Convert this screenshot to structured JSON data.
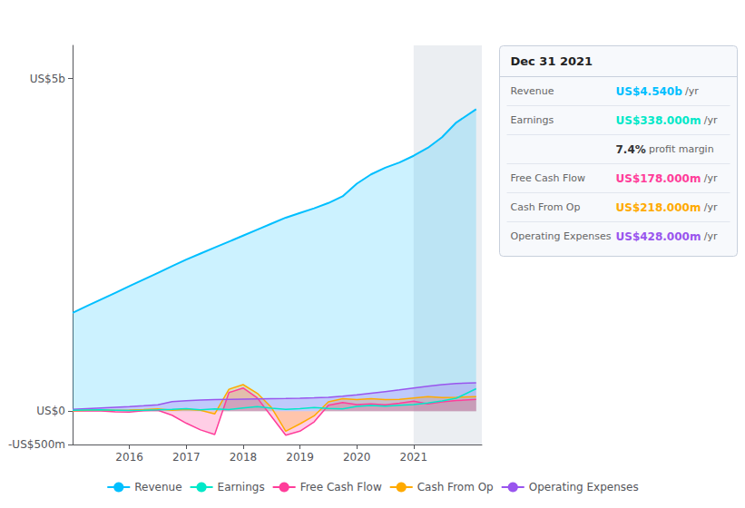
{
  "chart_data": {
    "type": "line",
    "x": [
      2015.0,
      2015.25,
      2015.5,
      2015.75,
      2016.0,
      2016.25,
      2016.5,
      2016.75,
      2017.0,
      2017.25,
      2017.5,
      2017.75,
      2018.0,
      2018.25,
      2018.5,
      2018.75,
      2019.0,
      2019.25,
      2019.5,
      2019.75,
      2020.0,
      2020.25,
      2020.5,
      2020.75,
      2021.0,
      2021.25,
      2021.5,
      2021.75,
      2022.1
    ],
    "series": [
      {
        "name": "Revenue",
        "type": "area",
        "color": "#00bfff",
        "values": [
          1480,
          1580,
          1680,
          1780,
          1880,
          1980,
          2080,
          2180,
          2280,
          2370,
          2460,
          2550,
          2640,
          2730,
          2820,
          2910,
          2980,
          3050,
          3130,
          3230,
          3420,
          3560,
          3660,
          3740,
          3840,
          3960,
          4120,
          4340,
          4540
        ]
      },
      {
        "name": "Earnings",
        "type": "line",
        "color": "#00e8c8",
        "values": [
          15,
          18,
          20,
          16,
          12,
          14,
          20,
          28,
          40,
          22,
          35,
          25,
          50,
          70,
          45,
          28,
          38,
          55,
          42,
          35,
          72,
          85,
          75,
          90,
          100,
          125,
          155,
          195,
          338
        ]
      },
      {
        "name": "Free Cash Flow",
        "type": "area",
        "color": "#ff3d9a",
        "values": [
          5,
          8,
          4,
          -8,
          -12,
          8,
          15,
          -60,
          -180,
          -280,
          -350,
          280,
          350,
          200,
          -80,
          -360,
          -300,
          -160,
          90,
          130,
          100,
          110,
          95,
          120,
          150,
          110,
          140,
          160,
          178
        ]
      },
      {
        "name": "Cash From Op",
        "type": "area",
        "color": "#ffaa00",
        "values": [
          8,
          15,
          22,
          15,
          18,
          25,
          35,
          15,
          30,
          15,
          -40,
          330,
          400,
          270,
          55,
          -300,
          -190,
          -70,
          140,
          190,
          175,
          190,
          175,
          180,
          200,
          220,
          205,
          210,
          218
        ]
      },
      {
        "name": "Operating Expenses",
        "type": "area",
        "color": "#9955ee",
        "values": [
          30,
          40,
          50,
          60,
          70,
          82,
          96,
          145,
          158,
          168,
          174,
          178,
          182,
          186,
          190,
          193,
          197,
          202,
          210,
          225,
          245,
          270,
          295,
          320,
          350,
          375,
          400,
          418,
          428
        ]
      }
    ],
    "xlim": [
      2015.0,
      2022.2
    ],
    "xticks": [
      2016,
      2017,
      2018,
      2019,
      2020,
      2021
    ],
    "ylim": [
      -500,
      5500
    ],
    "yticks": [
      {
        "value": 5000,
        "label": "US$5b"
      },
      {
        "value": 0,
        "label": "US$0"
      },
      {
        "value": -500,
        "label": "-US$500m"
      }
    ],
    "highlight_x": [
      2021.0,
      2022.2
    ],
    "grid": false,
    "legend": "bottom",
    "info_box": {
      "title": "Dec 31 2021",
      "rows": [
        {
          "label": "Revenue",
          "value": "US$4.540b",
          "unit": "/yr",
          "color": "#00bfff"
        },
        {
          "label": "Earnings",
          "value": "US$338.000m",
          "unit": "/yr",
          "color": "#00e8c8"
        },
        {
          "value": "7.4%",
          "unit": "profit margin",
          "color": "#333333"
        },
        {
          "label": "Free Cash Flow",
          "value": "US$178.000m",
          "unit": "/yr",
          "color": "#ff3d9a"
        },
        {
          "label": "Cash From Op",
          "value": "US$218.000m",
          "unit": "/yr",
          "color": "#ffaa00"
        },
        {
          "label": "Operating Expenses",
          "value": "US$428.000m",
          "unit": "/yr",
          "color": "#9955ee"
        }
      ]
    }
  }
}
